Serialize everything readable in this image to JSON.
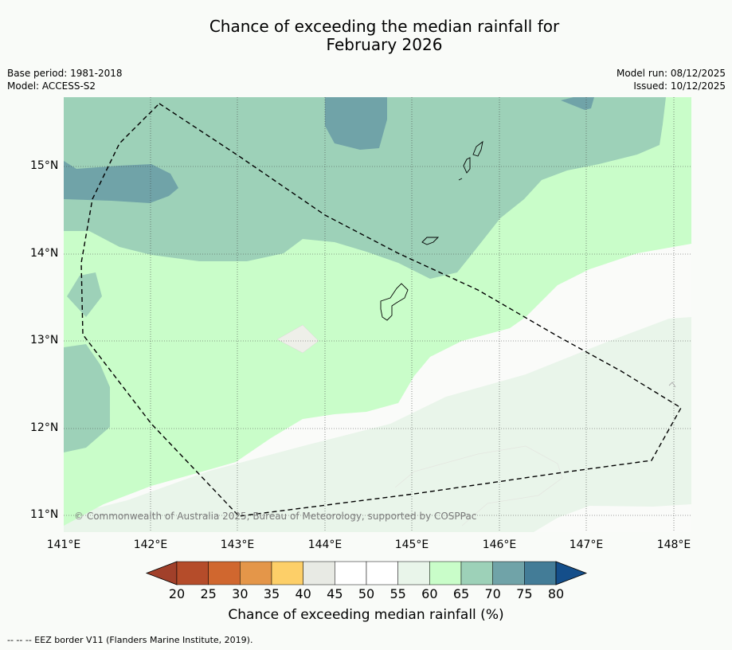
{
  "header": {
    "title_line1": "Chance of exceeding the median rainfall for",
    "title_line2": "February 2026"
  },
  "meta": {
    "base_period": "Base period: 1981-2018",
    "model": "Model: ACCESS-S2",
    "model_run": "Model run: 08/12/2025",
    "issued": "Issued: 10/12/2025"
  },
  "map": {
    "lat_labels": [
      "15°N",
      "14°N",
      "13°N",
      "12°N",
      "11°N"
    ],
    "lon_labels": [
      "141°E",
      "142°E",
      "143°E",
      "144°E",
      "145°E",
      "146°E",
      "147°E",
      "148°E"
    ],
    "copyright": "© Commonwealth of Australia 2025, Bureau of Meteorology, supported by COSPPac"
  },
  "legend": {
    "title": "Chance of exceeding median rainfall (%)",
    "ticks": [
      "20",
      "25",
      "30",
      "35",
      "40",
      "45",
      "50",
      "55",
      "60",
      "65",
      "70",
      "75",
      "80"
    ],
    "colors": [
      "#a1402a",
      "#b54c2a",
      "#d0672f",
      "#e49649",
      "#fdcf68",
      "#e8eae4",
      "#ffffff",
      "#ffffff",
      "#e9f5ea",
      "#c9fdc9",
      "#9dd1b8",
      "#70a3a8",
      "#437c97",
      "#144e8a"
    ]
  },
  "footnote": "--  --  -- EEZ border V11 (Flanders Marine Institute, 2019)."
}
